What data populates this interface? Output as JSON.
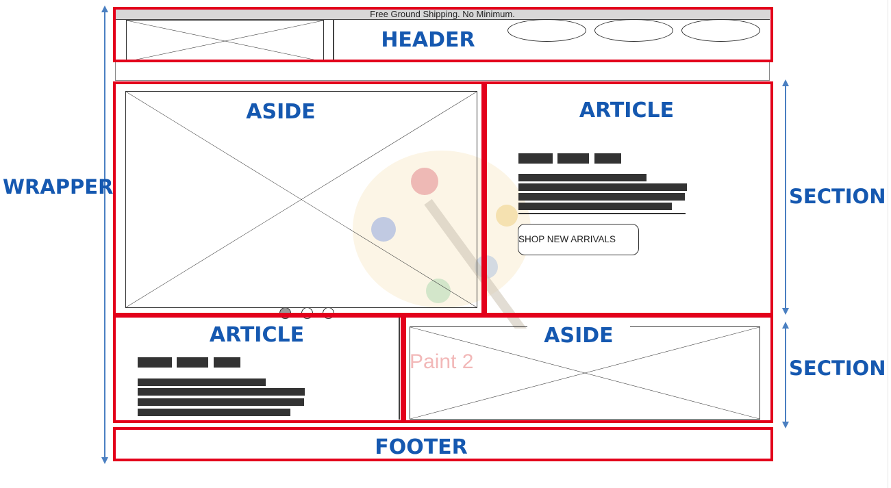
{
  "shipping_banner": "Free Ground Shipping. No Minimum.",
  "labels": {
    "header": "HEADER",
    "aside_top": "ASIDE",
    "article_top": "ARTICLE",
    "article_bottom": "ARTICLE",
    "aside_bottom": "ASIDE",
    "footer": "FOOTER",
    "wrapper": "WRAPPER",
    "section_top": "SECTION",
    "section_bottom": "SECTION"
  },
  "cta_button": "SHOP NEW ARRIVALS",
  "watermark_text": "Paint 2",
  "carousel": {
    "dots": 3,
    "active_index": 0
  },
  "colors": {
    "region_border": "#e3001b",
    "label_text": "#1558b0",
    "arrow": "#4a7fc1"
  }
}
